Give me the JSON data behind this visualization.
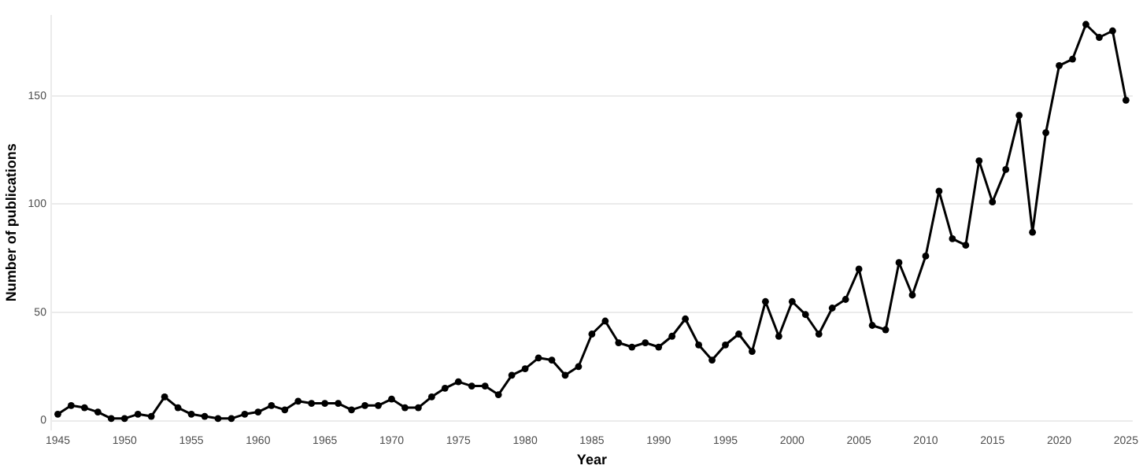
{
  "chart_data": {
    "type": "line",
    "xlabel": "Year",
    "ylabel": "Number of publications",
    "x": [
      1945,
      1946,
      1947,
      1948,
      1949,
      1950,
      1951,
      1952,
      1953,
      1954,
      1955,
      1956,
      1957,
      1958,
      1959,
      1960,
      1961,
      1962,
      1963,
      1964,
      1965,
      1966,
      1967,
      1968,
      1969,
      1970,
      1971,
      1972,
      1973,
      1974,
      1975,
      1976,
      1977,
      1978,
      1979,
      1980,
      1981,
      1982,
      1983,
      1984,
      1985,
      1986,
      1987,
      1988,
      1989,
      1990,
      1991,
      1992,
      1993,
      1994,
      1995,
      1996,
      1997,
      1998,
      1999,
      2000,
      2001,
      2002,
      2003,
      2004,
      2005,
      2006,
      2007,
      2008,
      2009,
      2010,
      2011,
      2012,
      2013,
      2014,
      2015,
      2016,
      2017,
      2018,
      2019,
      2020,
      2021,
      2022,
      2023,
      2024,
      2025
    ],
    "series": [
      {
        "color": "#000000",
        "values": [
          3,
          7,
          6,
          4,
          1,
          1,
          3,
          2,
          11,
          6,
          3,
          2,
          1,
          1,
          3,
          4,
          7,
          5,
          9,
          8,
          8,
          8,
          5,
          7,
          7,
          10,
          6,
          6,
          11,
          15,
          18,
          16,
          16,
          12,
          21,
          24,
          29,
          28,
          21,
          25,
          40,
          46,
          36,
          34,
          36,
          34,
          39,
          47,
          35,
          28,
          35,
          40,
          32,
          55,
          39,
          55,
          49,
          40,
          52,
          56,
          70,
          44,
          42,
          73,
          58,
          76,
          106,
          84,
          81,
          120,
          101,
          116,
          141,
          87,
          133,
          164,
          167,
          183,
          177,
          180,
          148
        ]
      }
    ],
    "xlim": [
      1944.5,
      2025.5
    ],
    "xticks": [
      1945,
      1950,
      1955,
      1960,
      1965,
      1970,
      1975,
      1980,
      1985,
      1990,
      1995,
      2000,
      2005,
      2010,
      2015,
      2020,
      2025
    ],
    "ylim": [
      -4,
      187
    ],
    "yticks": [
      0,
      50,
      100,
      150
    ],
    "grid": "y",
    "legend": false,
    "marker": "circle",
    "line_style": "solid"
  }
}
